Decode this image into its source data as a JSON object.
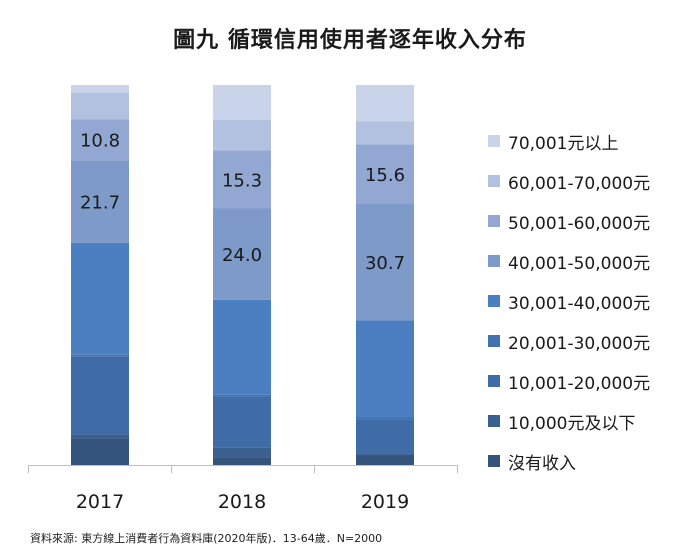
{
  "chart_data": {
    "type": "bar",
    "stacked": true,
    "title": "圖九  循環信用使用者逐年收入分布",
    "source": "資料來源: 東方線上消費者行為資料庫(2020年版)．13-64歲．N=2000",
    "categories": [
      "2017",
      "2018",
      "2019"
    ],
    "ylim": [
      0,
      100
    ],
    "legend_position": "right",
    "series": [
      {
        "name": "沒有收入",
        "color": "#35547c",
        "values": [
          7.0,
          2.0,
          2.5
        ]
      },
      {
        "name": "10,000元及以下",
        "color": "#3b5f8e",
        "values": [
          1.0,
          2.5,
          0.5
        ]
      },
      {
        "name": "10,001-20,000元",
        "color": "#3f6ba6",
        "values": [
          20.5,
          13.5,
          9.0
        ]
      },
      {
        "name": "20,001-30,000元",
        "color": "#4472b1",
        "values": [
          0.5,
          0.5,
          0.5
        ]
      },
      {
        "name": "30,001-40,000元",
        "color": "#4c7fc1",
        "values": [
          29.5,
          25.0,
          25.6
        ]
      },
      {
        "name": "40,001-50,000元",
        "color": "#7d9ac9",
        "values": [
          21.7,
          24.0,
          30.7
        ]
      },
      {
        "name": "50,001-60,000元",
        "color": "#92a8d2",
        "values": [
          10.8,
          15.3,
          15.6
        ]
      },
      {
        "name": "60,001-70,000元",
        "color": "#b3c1e0",
        "values": [
          7.0,
          8.0,
          6.0
        ]
      },
      {
        "name": "70,001元以上",
        "color": "#c9d3ea",
        "values": [
          2.0,
          9.2,
          9.6
        ]
      }
    ],
    "data_labels": [
      {
        "series": "50,001-60,000元",
        "category": "2017",
        "text": "10.8"
      },
      {
        "series": "40,001-50,000元",
        "category": "2017",
        "text": "21.7"
      },
      {
        "series": "50,001-60,000元",
        "category": "2018",
        "text": "15.3"
      },
      {
        "series": "40,001-50,000元",
        "category": "2018",
        "text": "24.0"
      },
      {
        "series": "50,001-60,000元",
        "category": "2019",
        "text": "15.6"
      },
      {
        "series": "40,001-50,000元",
        "category": "2019",
        "text": "30.7"
      }
    ]
  }
}
